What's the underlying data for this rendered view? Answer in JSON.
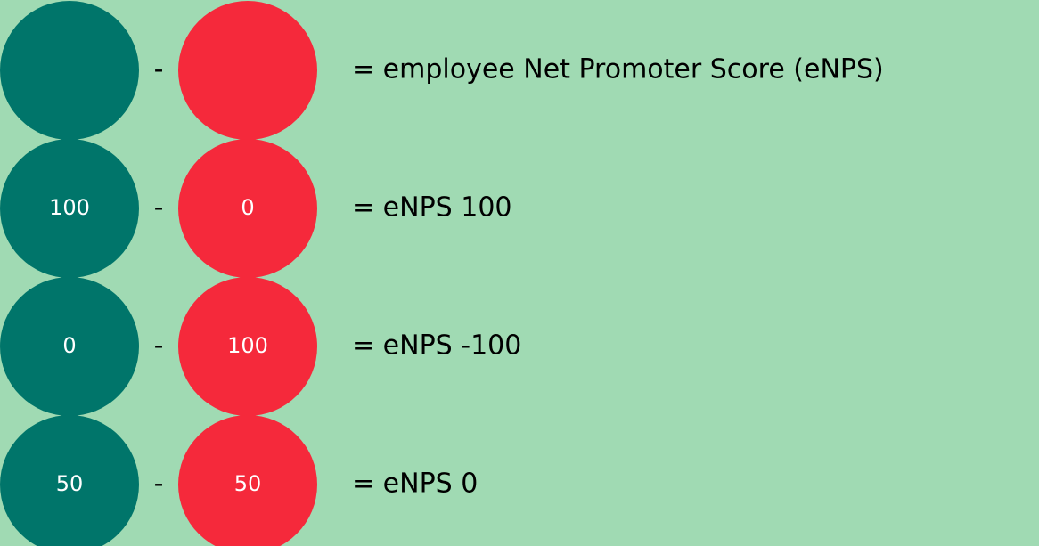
{
  "rows": [
    {
      "minus": "-",
      "result": "= employee Net Promoter Score (eNPS)"
    },
    {
      "left": "100",
      "minus": "-",
      "right": "0",
      "result": "= eNPS 100"
    },
    {
      "left": "0",
      "minus": "-",
      "right": "100",
      "result": "= eNPS -100"
    },
    {
      "left": "50",
      "minus": "-",
      "right": "50",
      "result": "= eNPS 0"
    }
  ]
}
